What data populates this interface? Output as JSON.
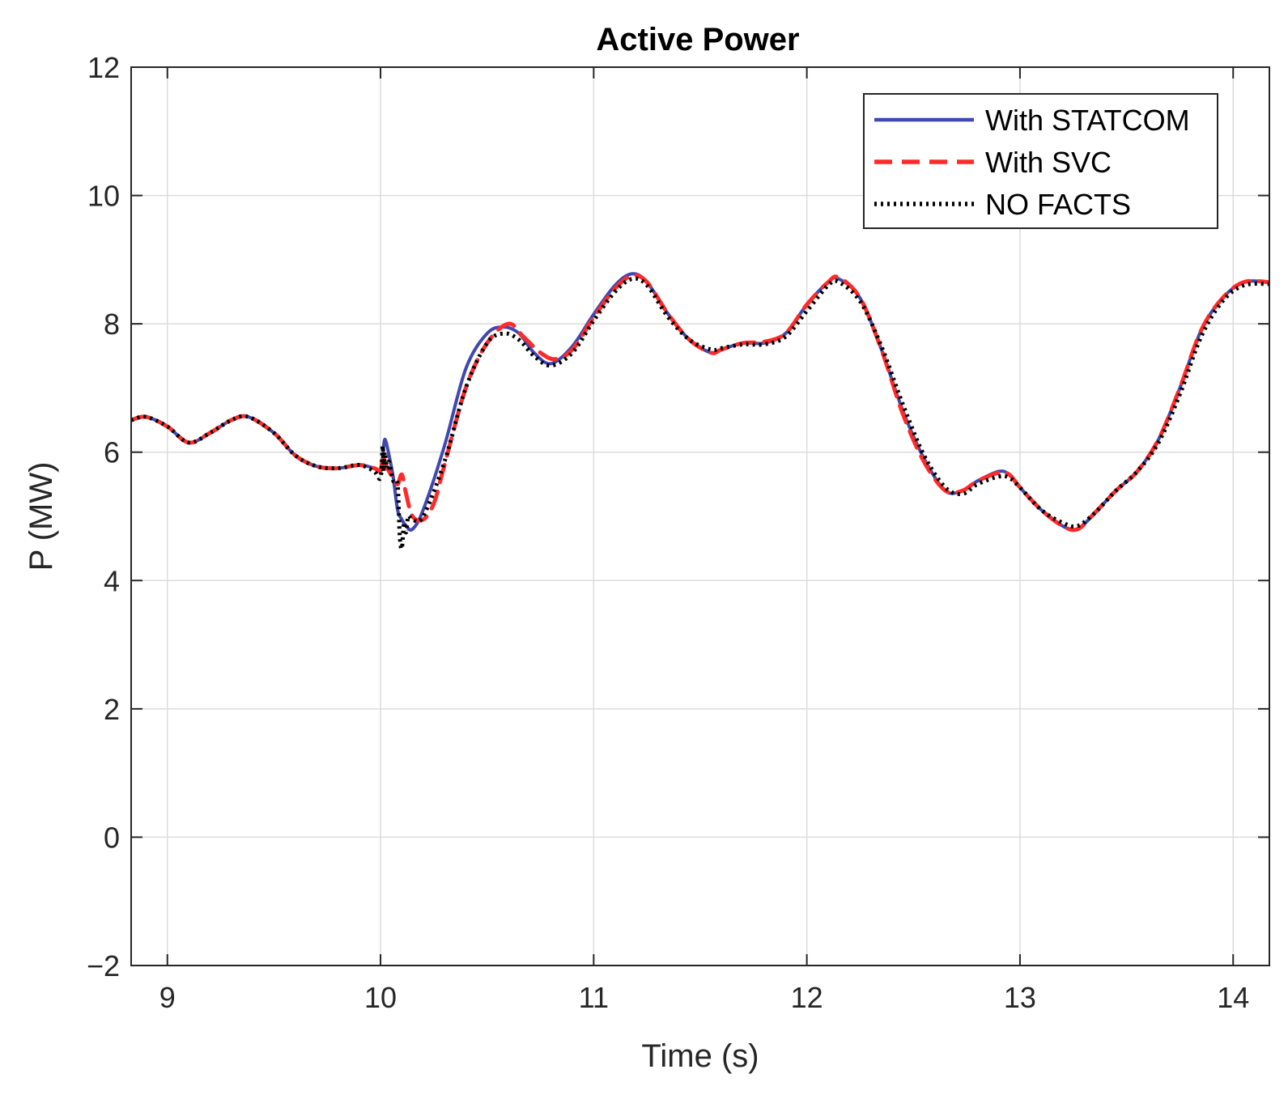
{
  "chart_data": {
    "type": "line",
    "title": "Active Power",
    "xlabel": "Time (s)",
    "ylabel": "P (MW)",
    "xlim": [
      8.83,
      14.17
    ],
    "ylim": [
      -2,
      12
    ],
    "xticks": [
      9,
      10,
      11,
      12,
      13,
      14
    ],
    "yticks": [
      -2,
      0,
      2,
      4,
      6,
      8,
      10,
      12
    ],
    "xtick_labels": [
      "9",
      "10",
      "11",
      "12",
      "13",
      "14"
    ],
    "ytick_labels": [
      "−2",
      "0",
      "2",
      "4",
      "6",
      "8",
      "10",
      "12"
    ],
    "grid": true,
    "legend_position": "top-right",
    "series": [
      {
        "name": "With STATCOM",
        "color": "#3f48b0",
        "style": "solid",
        "x": [
          8.83,
          8.9,
          9.0,
          9.1,
          9.2,
          9.3,
          9.38,
          9.5,
          9.6,
          9.7,
          9.8,
          9.9,
          9.97,
          10.0,
          10.01,
          10.02,
          10.04,
          10.06,
          10.08,
          10.1,
          10.12,
          10.15,
          10.2,
          10.3,
          10.4,
          10.5,
          10.58,
          10.65,
          10.72,
          10.8,
          10.9,
          11.0,
          11.1,
          11.18,
          11.25,
          11.35,
          11.45,
          11.55,
          11.6,
          11.7,
          11.8,
          11.9,
          12.0,
          12.1,
          12.15,
          12.25,
          12.35,
          12.45,
          12.55,
          12.65,
          12.73,
          12.8,
          12.9,
          12.95,
          13.0,
          13.1,
          13.2,
          13.27,
          13.35,
          13.45,
          13.55,
          13.65,
          13.75,
          13.85,
          13.95,
          14.05,
          14.17
        ],
        "y": [
          6.5,
          6.55,
          6.4,
          6.15,
          6.3,
          6.5,
          6.55,
          6.3,
          5.95,
          5.78,
          5.75,
          5.8,
          5.75,
          5.7,
          5.9,
          6.2,
          5.95,
          5.6,
          5.1,
          4.95,
          4.85,
          4.8,
          5.1,
          6.1,
          7.3,
          7.85,
          7.95,
          7.85,
          7.55,
          7.38,
          7.65,
          8.15,
          8.6,
          8.78,
          8.65,
          8.15,
          7.75,
          7.55,
          7.6,
          7.7,
          7.7,
          7.85,
          8.3,
          8.65,
          8.7,
          8.4,
          7.6,
          6.65,
          5.9,
          5.4,
          5.4,
          5.55,
          5.7,
          5.65,
          5.45,
          5.1,
          4.85,
          4.8,
          5.05,
          5.4,
          5.7,
          6.2,
          7.0,
          7.9,
          8.4,
          8.65,
          8.65
        ]
      },
      {
        "name": "With SVC",
        "color": "#ff2a2a",
        "style": "dashed",
        "x": [
          8.83,
          8.9,
          9.0,
          9.1,
          9.2,
          9.3,
          9.38,
          9.5,
          9.6,
          9.7,
          9.8,
          9.9,
          9.97,
          10.0,
          10.01,
          10.02,
          10.04,
          10.06,
          10.08,
          10.1,
          10.12,
          10.15,
          10.2,
          10.25,
          10.3,
          10.4,
          10.5,
          10.6,
          10.67,
          10.75,
          10.82,
          10.9,
          11.0,
          11.1,
          11.18,
          11.25,
          11.35,
          11.45,
          11.55,
          11.6,
          11.7,
          11.8,
          11.9,
          12.0,
          12.1,
          12.15,
          12.25,
          12.35,
          12.45,
          12.55,
          12.65,
          12.73,
          12.8,
          12.9,
          12.95,
          13.0,
          13.1,
          13.2,
          13.27,
          13.35,
          13.45,
          13.55,
          13.65,
          13.75,
          13.85,
          13.95,
          14.05,
          14.17
        ],
        "y": [
          6.5,
          6.55,
          6.4,
          6.15,
          6.3,
          6.5,
          6.55,
          6.3,
          5.95,
          5.78,
          5.75,
          5.8,
          5.75,
          5.72,
          5.95,
          5.85,
          5.7,
          5.6,
          5.5,
          5.65,
          5.35,
          5.0,
          4.95,
          5.2,
          5.8,
          7.0,
          7.7,
          8.0,
          7.8,
          7.55,
          7.45,
          7.6,
          8.1,
          8.55,
          8.75,
          8.65,
          8.15,
          7.75,
          7.55,
          7.6,
          7.7,
          7.72,
          7.85,
          8.3,
          8.65,
          8.72,
          8.4,
          7.6,
          6.6,
          5.85,
          5.4,
          5.4,
          5.55,
          5.68,
          5.65,
          5.45,
          5.1,
          4.85,
          4.8,
          5.05,
          5.4,
          5.7,
          6.2,
          7.0,
          7.9,
          8.4,
          8.65,
          8.65
        ]
      },
      {
        "name": "NO FACTS",
        "color": "#000000",
        "style": "dotted",
        "x": [
          8.83,
          8.9,
          9.0,
          9.1,
          9.2,
          9.3,
          9.38,
          9.5,
          9.6,
          9.7,
          9.8,
          9.9,
          9.97,
          10.0,
          10.01,
          10.015,
          10.02,
          10.03,
          10.04,
          10.06,
          10.08,
          10.09,
          10.1,
          10.11,
          10.12,
          10.13,
          10.15,
          10.2,
          10.3,
          10.4,
          10.5,
          10.58,
          10.65,
          10.72,
          10.8,
          10.9,
          11.0,
          11.1,
          11.18,
          11.25,
          11.35,
          11.45,
          11.55,
          11.6,
          11.7,
          11.8,
          11.9,
          12.0,
          12.1,
          12.15,
          12.25,
          12.35,
          12.45,
          12.55,
          12.65,
          12.73,
          12.8,
          12.9,
          12.95,
          13.0,
          13.1,
          13.2,
          13.27,
          13.35,
          13.45,
          13.55,
          13.65,
          13.75,
          13.85,
          13.95,
          14.05,
          14.17
        ],
        "y": [
          6.5,
          6.55,
          6.4,
          6.15,
          6.3,
          6.5,
          6.55,
          6.3,
          5.95,
          5.78,
          5.75,
          5.8,
          5.7,
          5.6,
          6.1,
          5.7,
          6.0,
          5.75,
          5.85,
          5.55,
          5.5,
          4.7,
          4.5,
          4.9,
          4.75,
          5.0,
          4.95,
          5.0,
          5.85,
          7.0,
          7.7,
          7.85,
          7.75,
          7.5,
          7.35,
          7.55,
          8.05,
          8.5,
          8.7,
          8.6,
          8.1,
          7.75,
          7.6,
          7.62,
          7.68,
          7.68,
          7.8,
          8.2,
          8.6,
          8.65,
          8.35,
          7.65,
          6.75,
          5.95,
          5.45,
          5.35,
          5.5,
          5.62,
          5.6,
          5.45,
          5.1,
          4.9,
          4.85,
          5.05,
          5.4,
          5.7,
          6.15,
          6.9,
          7.8,
          8.35,
          8.6,
          8.62
        ]
      }
    ]
  }
}
